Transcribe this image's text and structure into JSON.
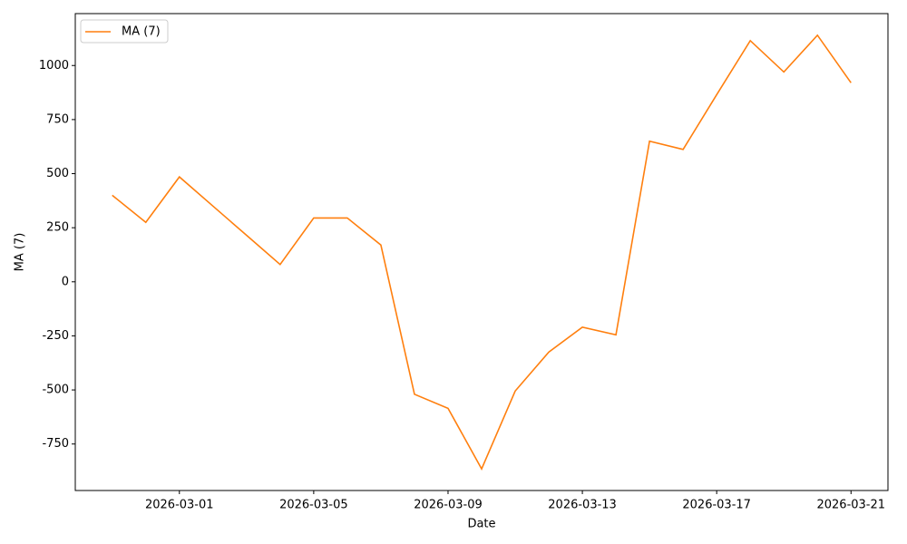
{
  "chart_data": {
    "type": "line",
    "x": [
      "2026-02-27",
      "2026-02-28",
      "2026-03-01",
      "2026-03-02",
      "2026-03-03",
      "2026-03-04",
      "2026-03-05",
      "2026-03-06",
      "2026-03-07",
      "2026-03-08",
      "2026-03-09",
      "2026-03-10",
      "2026-03-11",
      "2026-03-12",
      "2026-03-13",
      "2026-03-14",
      "2026-03-15",
      "2026-03-16",
      "2026-03-17",
      "2026-03-18",
      "2026-03-19",
      "2026-03-20",
      "2026-03-21"
    ],
    "series": [
      {
        "name": "MA (7)",
        "color": "#ff7f0e",
        "values": [
          400,
          275,
          485,
          350,
          215,
          80,
          295,
          295,
          170,
          -520,
          -585,
          -865,
          -505,
          -325,
          -210,
          -245,
          650,
          612,
          865,
          1115,
          970,
          1140,
          920
        ]
      }
    ],
    "xlabel": "Date",
    "ylabel": "MA (7)",
    "xlim": [
      "2026-02-25T21:36Z",
      "2026-03-22T02:24Z"
    ],
    "xticks": [
      "2026-03-01",
      "2026-03-05",
      "2026-03-09",
      "2026-03-13",
      "2026-03-17",
      "2026-03-21"
    ],
    "ylim": [
      -965,
      1240
    ],
    "yticks": [
      -750,
      -500,
      -250,
      0,
      250,
      500,
      750,
      1000
    ],
    "legend": "upper left",
    "grid": false
  }
}
